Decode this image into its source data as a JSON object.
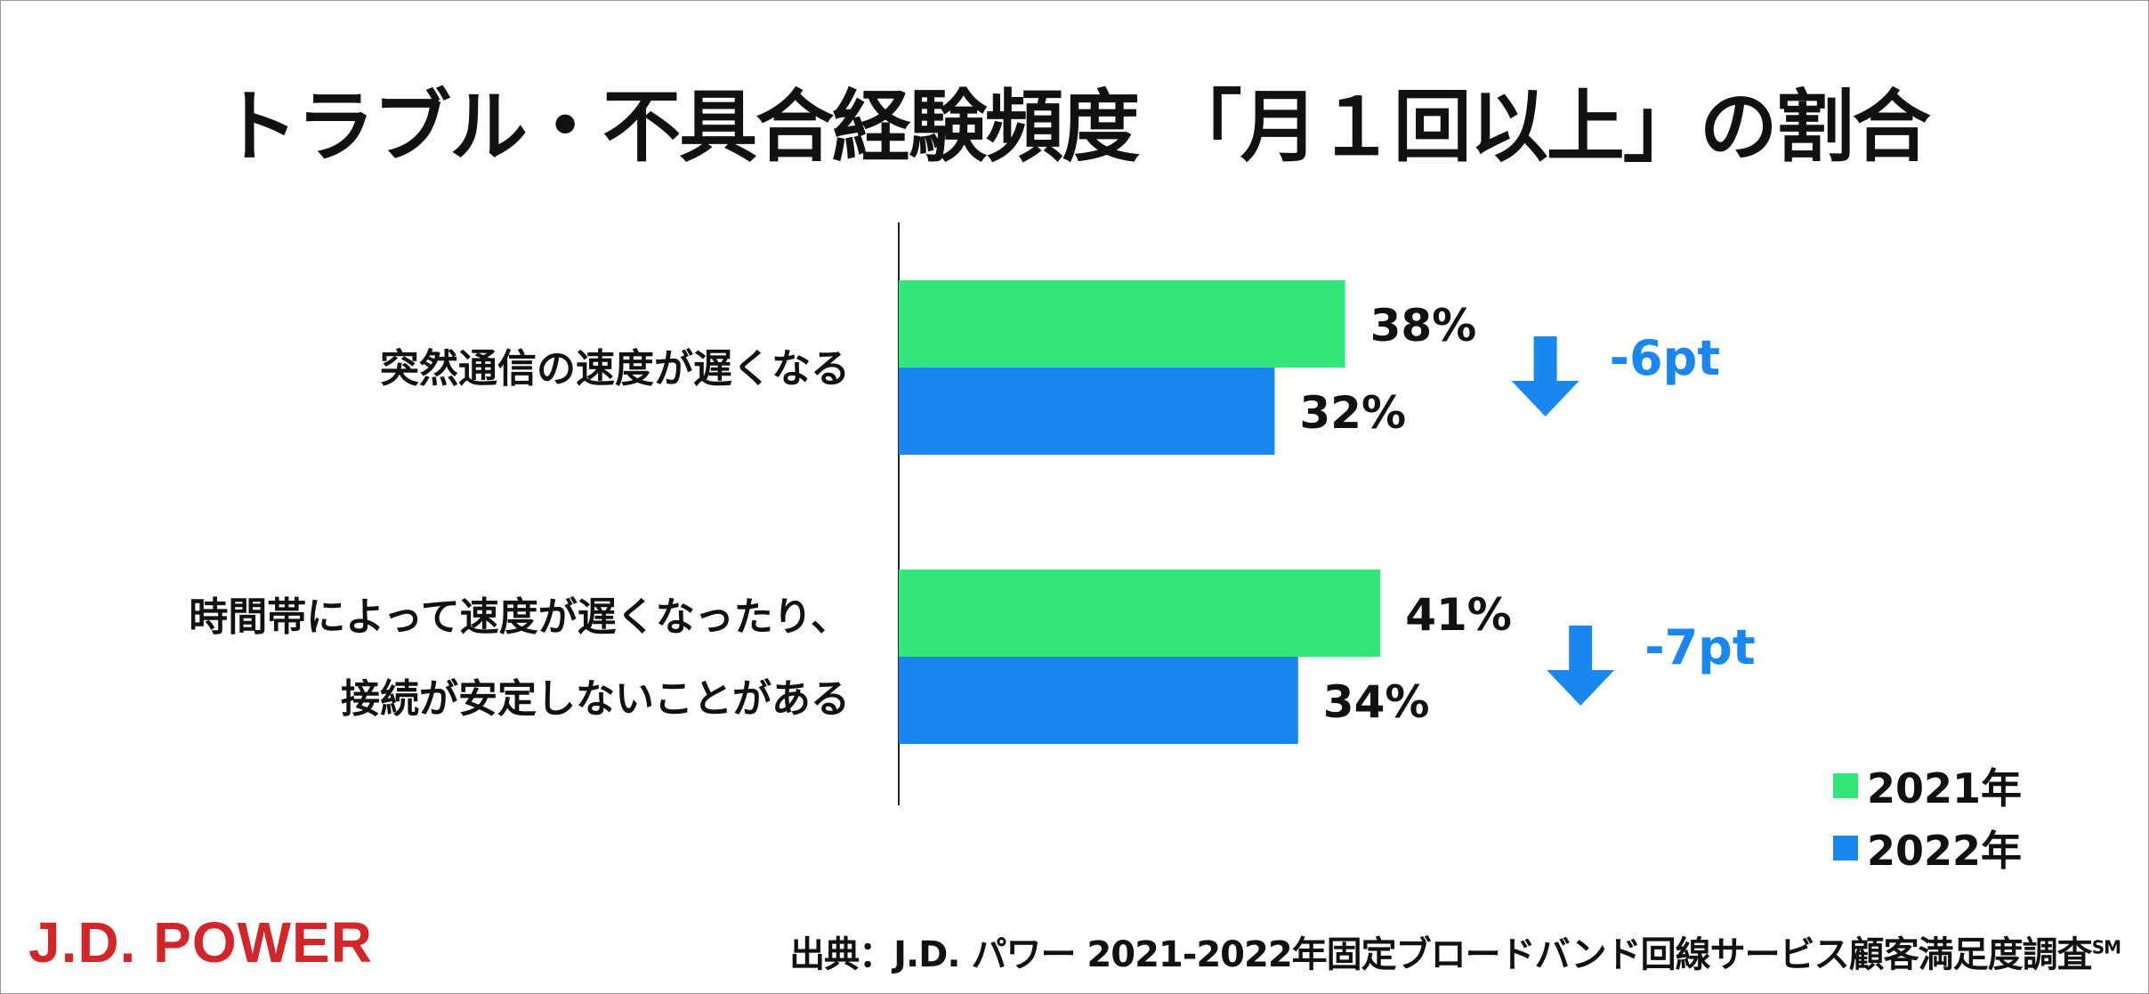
{
  "title": "トラブル・不具合経験頻度 「月１回以上」の割合",
  "chart_data": {
    "type": "bar",
    "orientation": "horizontal",
    "categories": [
      [
        "突然通信の速度が遅くなる"
      ],
      [
        "時間帯によって速度が遅くなったり、",
        "接続が安定しないことがある"
      ]
    ],
    "series": [
      {
        "name": "2021年",
        "values": [
          38,
          41
        ],
        "labels": [
          "38%",
          "41%"
        ],
        "color": "#33e67a"
      },
      {
        "name": "2022年",
        "values": [
          32,
          34
        ],
        "labels": [
          "32%",
          "34%"
        ],
        "color": "#1a86f0"
      }
    ],
    "changes": [
      "-6pt",
      "-7pt"
    ],
    "change_color": "#1a86f0",
    "unit": "%",
    "grid": false,
    "legend_position": "bottom-right"
  },
  "brand": "J.D. POWER",
  "brand_color": "#d2262b",
  "source": {
    "text": "出典：J.D. パワー 2021-2022年固定ブロードバンド回線サービス顧客満足度調査",
    "mark": "SM"
  }
}
